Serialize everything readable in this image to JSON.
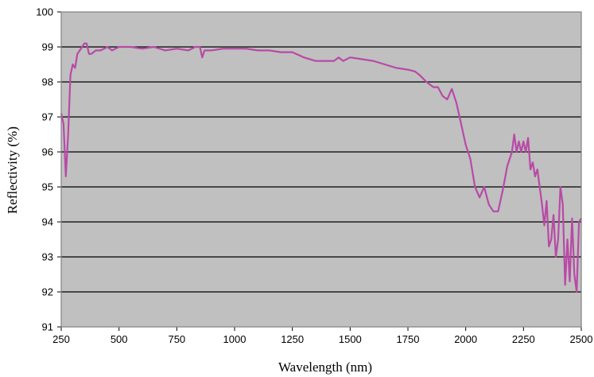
{
  "chart_data": {
    "type": "line",
    "title": "",
    "xlabel": "Wavelength (nm)",
    "ylabel": "Reflectivity (%)",
    "xlim": [
      250,
      2500
    ],
    "ylim": [
      91,
      100
    ],
    "xticks": [
      250,
      500,
      750,
      1000,
      1250,
      1500,
      1750,
      2000,
      2250,
      2500
    ],
    "yticks": [
      91,
      92,
      93,
      94,
      95,
      96,
      97,
      98,
      99,
      100
    ],
    "grid": "horizontal",
    "legend": "none",
    "colors": {
      "line": "#b84aa6",
      "plot_bg": "#c0c0c0",
      "grid": "#000000",
      "frame": "#808080"
    },
    "series": [
      {
        "x": [
          250,
          260,
          270,
          280,
          290,
          300,
          310,
          320,
          330,
          340,
          350,
          360,
          370,
          380,
          400,
          420,
          450,
          470,
          500,
          550,
          600,
          650,
          700,
          750,
          800,
          830,
          850,
          860,
          870,
          900,
          950,
          1000,
          1050,
          1100,
          1150,
          1200,
          1250,
          1300,
          1350,
          1400,
          1430,
          1450,
          1470,
          1500,
          1550,
          1600,
          1650,
          1700,
          1750,
          1780,
          1800,
          1830,
          1860,
          1880,
          1900,
          1920,
          1940,
          1960,
          1980,
          2000,
          2020,
          2040,
          2060,
          2080,
          2100,
          2120,
          2140,
          2160,
          2180,
          2200,
          2210,
          2220,
          2230,
          2240,
          2250,
          2260,
          2270,
          2280,
          2290,
          2300,
          2310,
          2320,
          2330,
          2340,
          2350,
          2360,
          2370,
          2380,
          2390,
          2400,
          2410,
          2420,
          2430,
          2440,
          2450,
          2460,
          2470,
          2480,
          2490,
          2500
        ],
        "y": [
          97.1,
          96.8,
          95.3,
          96.5,
          98.2,
          98.5,
          98.4,
          98.8,
          98.9,
          99.0,
          99.1,
          99.1,
          98.8,
          98.8,
          98.9,
          98.9,
          99.0,
          98.9,
          99.0,
          99.0,
          98.95,
          99.0,
          98.9,
          98.95,
          98.9,
          99.0,
          99.0,
          98.7,
          98.9,
          98.9,
          98.95,
          98.95,
          98.95,
          98.9,
          98.9,
          98.85,
          98.85,
          98.7,
          98.6,
          98.6,
          98.6,
          98.7,
          98.6,
          98.7,
          98.65,
          98.6,
          98.5,
          98.4,
          98.35,
          98.3,
          98.2,
          98.0,
          97.85,
          97.85,
          97.6,
          97.5,
          97.8,
          97.4,
          96.8,
          96.2,
          95.8,
          95.0,
          94.7,
          95.0,
          94.5,
          94.3,
          94.3,
          94.9,
          95.6,
          96.0,
          96.5,
          96.0,
          96.3,
          96.0,
          96.3,
          96.0,
          96.4,
          95.5,
          95.7,
          95.3,
          95.5,
          95.0,
          94.5,
          93.9,
          94.6,
          93.3,
          93.5,
          94.2,
          93.0,
          93.5,
          95.0,
          94.5,
          92.2,
          93.5,
          92.3,
          94.1,
          92.5,
          92.0,
          94.0,
          94.1
        ]
      }
    ]
  }
}
